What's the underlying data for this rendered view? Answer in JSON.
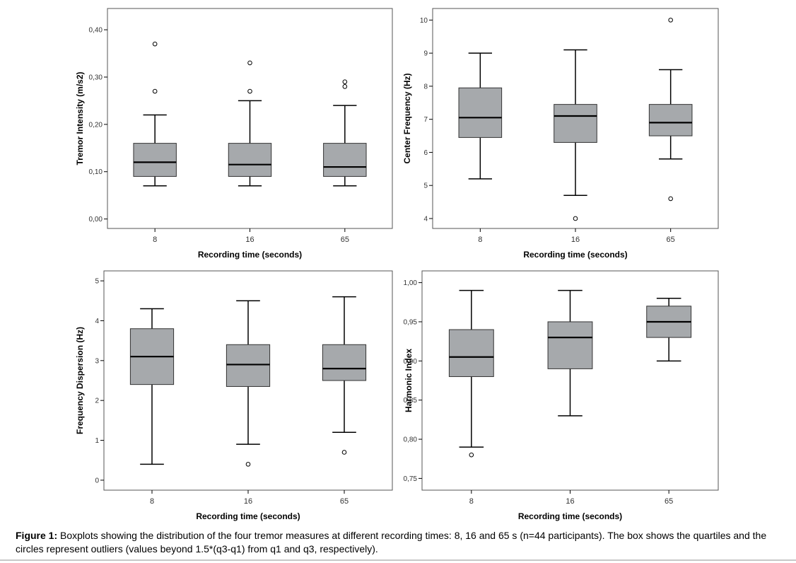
{
  "chart_data": [
    {
      "type": "boxplot",
      "ylabel": "Tremor Intensity (m/s2)",
      "xlabel": "Recording time (seconds)",
      "categories": [
        "8",
        "16",
        "65"
      ],
      "ylim": [
        -0.02,
        0.445
      ],
      "yticks": [
        0.0,
        0.1,
        0.2,
        0.3,
        0.4
      ],
      "ytick_labels": [
        "0,00",
        "0,10",
        "0,20",
        "0,30",
        "0,40"
      ],
      "boxes": [
        {
          "category": "8",
          "whisker_low": 0.07,
          "q1": 0.09,
          "median": 0.12,
          "q3": 0.16,
          "whisker_high": 0.22,
          "outliers": [
            0.27,
            0.37
          ]
        },
        {
          "category": "16",
          "whisker_low": 0.07,
          "q1": 0.09,
          "median": 0.115,
          "q3": 0.16,
          "whisker_high": 0.25,
          "outliers": [
            0.27,
            0.33
          ]
        },
        {
          "category": "65",
          "whisker_low": 0.07,
          "q1": 0.09,
          "median": 0.11,
          "q3": 0.16,
          "whisker_high": 0.24,
          "outliers": [
            0.28,
            0.29
          ]
        }
      ]
    },
    {
      "type": "boxplot",
      "ylabel": "Center Frequency (Hz)",
      "xlabel": "Recording time (seconds)",
      "categories": [
        "8",
        "16",
        "65"
      ],
      "ylim": [
        3.7,
        10.35
      ],
      "yticks": [
        4,
        5,
        6,
        7,
        8,
        9,
        10
      ],
      "ytick_labels": [
        "4",
        "5",
        "6",
        "7",
        "8",
        "9",
        "10"
      ],
      "boxes": [
        {
          "category": "8",
          "whisker_low": 5.2,
          "q1": 6.45,
          "median": 7.05,
          "q3": 7.95,
          "whisker_high": 9.0,
          "outliers": []
        },
        {
          "category": "16",
          "whisker_low": 4.7,
          "q1": 6.3,
          "median": 7.1,
          "q3": 7.45,
          "whisker_high": 9.1,
          "outliers": [
            4.0
          ]
        },
        {
          "category": "65",
          "whisker_low": 5.8,
          "q1": 6.5,
          "median": 6.9,
          "q3": 7.45,
          "whisker_high": 8.5,
          "outliers": [
            4.6,
            10.0
          ]
        }
      ]
    },
    {
      "type": "boxplot",
      "ylabel": "Frequency Dispersion (Hz)",
      "xlabel": "Recording time (seconds)",
      "categories": [
        "8",
        "16",
        "65"
      ],
      "ylim": [
        -0.25,
        5.25
      ],
      "yticks": [
        0,
        1,
        2,
        3,
        4,
        5
      ],
      "ytick_labels": [
        "0",
        "1",
        "2",
        "3",
        "4",
        "5"
      ],
      "boxes": [
        {
          "category": "8",
          "whisker_low": 0.4,
          "q1": 2.4,
          "median": 3.1,
          "q3": 3.8,
          "whisker_high": 4.3,
          "outliers": []
        },
        {
          "category": "16",
          "whisker_low": 0.9,
          "q1": 2.35,
          "median": 2.9,
          "q3": 3.4,
          "whisker_high": 4.5,
          "outliers": [
            0.4
          ]
        },
        {
          "category": "65",
          "whisker_low": 1.2,
          "q1": 2.5,
          "median": 2.8,
          "q3": 3.4,
          "whisker_high": 4.6,
          "outliers": [
            0.7
          ]
        }
      ]
    },
    {
      "type": "boxplot",
      "ylabel": "Harmonic Index",
      "xlabel": "Recording time (seconds)",
      "categories": [
        "8",
        "16",
        "65"
      ],
      "ylim": [
        0.735,
        1.015
      ],
      "yticks": [
        0.75,
        0.8,
        0.85,
        0.9,
        0.95,
        1.0
      ],
      "ytick_labels": [
        "0,75",
        "0,80",
        "0,85",
        "0,90",
        "0,95",
        "1,00"
      ],
      "boxes": [
        {
          "category": "8",
          "whisker_low": 0.79,
          "q1": 0.88,
          "median": 0.905,
          "q3": 0.94,
          "whisker_high": 0.99,
          "outliers": [
            0.78
          ]
        },
        {
          "category": "16",
          "whisker_low": 0.83,
          "q1": 0.89,
          "median": 0.93,
          "q3": 0.95,
          "whisker_high": 0.99,
          "outliers": []
        },
        {
          "category": "65",
          "whisker_low": 0.9,
          "q1": 0.93,
          "median": 0.95,
          "q3": 0.97,
          "whisker_high": 0.98,
          "outliers": []
        }
      ]
    }
  ],
  "caption": {
    "lead": "Figure 1:",
    "text": " Boxplots showing the distribution of the four tremor measures at different recording times: 8, 16 and 65 s (n=44 participants). The box shows the quartiles and the circles represent outliers (values beyond 1.5*(q3-q1) from q1 and q3, respectively)."
  },
  "colors": {
    "box_fill": "#a6a9ac",
    "frame": "#555555",
    "median": "#000000"
  }
}
